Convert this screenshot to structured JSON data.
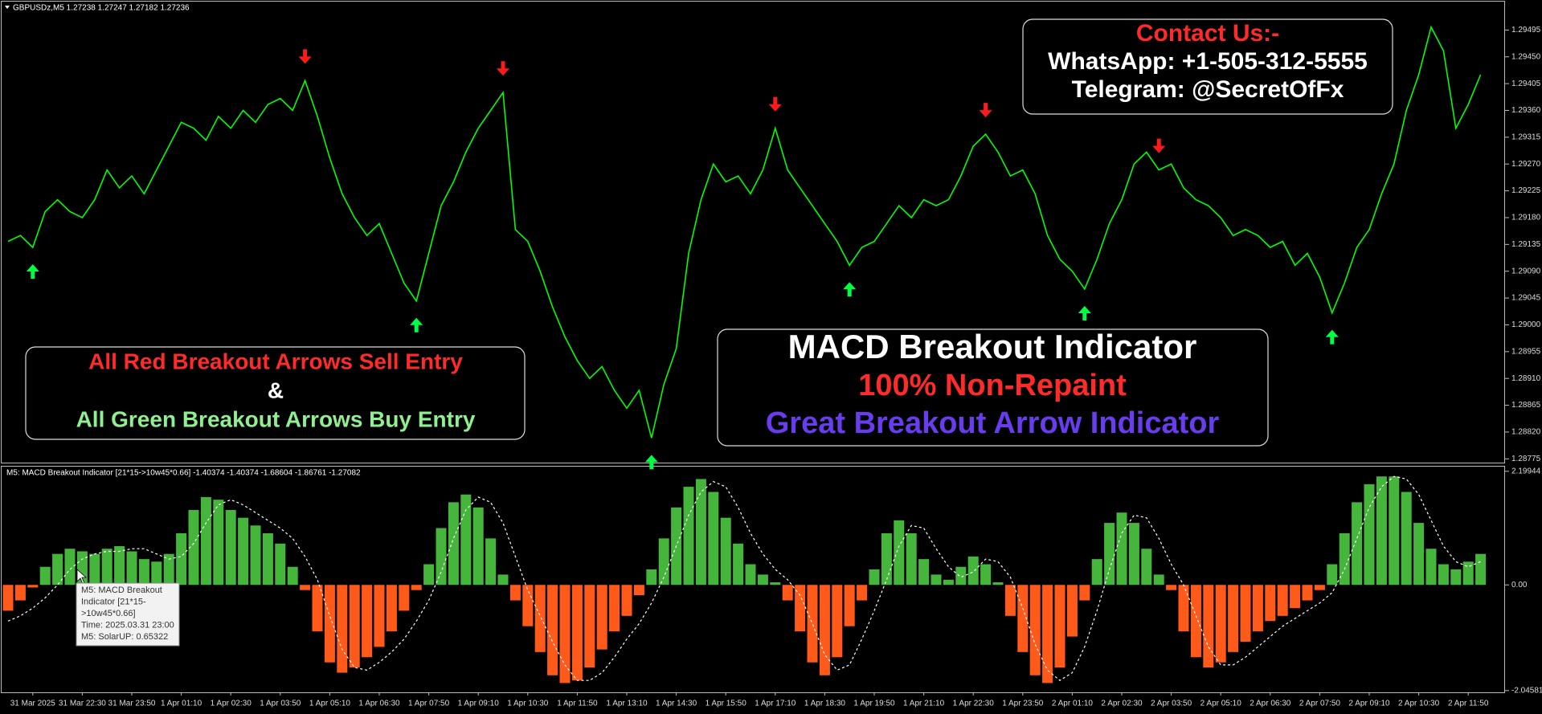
{
  "chart_data": [
    {
      "type": "line",
      "title": "GBPUSDz,M5  1.27238 1.27247 1.27182 1.27236",
      "color": "#00ff00",
      "values": [
        1.2914,
        1.2915,
        1.2913,
        1.2919,
        1.2921,
        1.2919,
        1.2918,
        1.2921,
        1.2926,
        1.2923,
        1.2925,
        1.2922,
        1.2926,
        1.293,
        1.2934,
        1.2933,
        1.2931,
        1.2935,
        1.2933,
        1.2936,
        1.2934,
        1.2937,
        1.2938,
        1.2936,
        1.2941,
        1.2935,
        1.2928,
        1.2922,
        1.2918,
        1.2915,
        1.2917,
        1.2912,
        1.2907,
        1.2904,
        1.2912,
        1.292,
        1.2924,
        1.2929,
        1.2933,
        1.2936,
        1.2939,
        1.2916,
        1.2914,
        1.2909,
        1.2903,
        1.2898,
        1.2894,
        1.2891,
        1.2893,
        1.2889,
        1.2886,
        1.2889,
        1.2881,
        1.289,
        1.2896,
        1.2912,
        1.2921,
        1.2927,
        1.2924,
        1.2925,
        1.2922,
        1.2926,
        1.2933,
        1.2926,
        1.2923,
        1.292,
        1.2917,
        1.2914,
        1.291,
        1.2913,
        1.2914,
        1.2917,
        1.292,
        1.2918,
        1.2921,
        1.292,
        1.2921,
        1.2925,
        1.293,
        1.2932,
        1.2929,
        1.2925,
        1.2926,
        1.2922,
        1.2915,
        1.2911,
        1.2909,
        1.2906,
        1.2911,
        1.2917,
        1.2921,
        1.2927,
        1.2929,
        1.2926,
        1.2927,
        1.2923,
        1.2921,
        1.292,
        1.2918,
        1.2915,
        1.2916,
        1.2915,
        1.2913,
        1.2914,
        1.291,
        1.2912,
        1.2908,
        1.2902,
        1.2907,
        1.2913,
        1.2916,
        1.2922,
        1.2927,
        1.2936,
        1.2942,
        1.295,
        1.2946,
        1.2933,
        1.2937,
        1.2942
      ],
      "sell_signals": [
        24,
        40,
        62,
        79,
        93
      ],
      "buy_signals": [
        2,
        33,
        52,
        68,
        87,
        107
      ],
      "sell_color": "#ff1a1a",
      "buy_color": "#00ff44",
      "ylim": [
        1.2877,
        1.2954
      ],
      "yticks": [
        1.29495,
        {
          "value": 1.2945,
          "label": "1.29450"
        },
        1.29405,
        {
          "value": 1.2936,
          "label": "1.29360"
        },
        1.29315,
        {
          "value": 1.2927,
          "label": "1.29270"
        },
        1.29225,
        {
          "value": 1.2918,
          "label": "1.29180"
        },
        1.29135,
        {
          "value": 1.2909,
          "label": "1.29090"
        },
        1.29045,
        {
          "value": 1.29,
          "label": "1.29000"
        },
        1.28955,
        {
          "value": 1.2891,
          "label": "1.28910"
        },
        1.28865,
        {
          "value": 1.2882,
          "label": "1.28820"
        },
        1.28775
      ],
      "annotations": [
        {
          "lines": [
            {
              "text": "Contact Us:-",
              "color": "#ff2a2a"
            },
            {
              "text": "WhatsApp: +1-505-312-5555",
              "color": "#ffffff"
            },
            {
              "text": "Telegram: @SecretOfFx",
              "color": "#ffffff"
            }
          ]
        },
        {
          "lines": [
            {
              "text": "All Red Breakout Arrows Sell Entry",
              "color": "#ff2a2a"
            },
            {
              "text": "&",
              "color": "#ffffff"
            },
            {
              "text": "All Green Breakout Arrows Buy Entry",
              "color": "#8ef08e"
            }
          ]
        },
        {
          "lines": [
            {
              "text": "MACD Breakout Indicator",
              "color": "#ffffff"
            },
            {
              "text": "100% Non-Repaint",
              "color": "#ff2a2a"
            },
            {
              "text": "Great Breakout Arrow Indicator",
              "color": "#6a3cf0"
            }
          ]
        }
      ]
    },
    {
      "type": "bar",
      "title": "M5: MACD Breakout Indicator [21*15->10w45*0.66] -1.40374 -1.40374 -1.68604 -1.86761 -1.27082",
      "positive_color": "#45b53c",
      "negative_color": "#ff5a1a",
      "signal_color": "#ffffff",
      "categories": [
        null,
        null,
        "31 Mar 2025",
        null,
        null,
        null,
        "31 Mar 22:30",
        null,
        null,
        null,
        "31 Mar 23:50",
        null,
        null,
        null,
        "1 Apr 01:10",
        null,
        null,
        null,
        "1 Apr 02:30",
        null,
        null,
        null,
        "1 Apr 03:50",
        null,
        null,
        null,
        "1 Apr 05:10",
        null,
        null,
        null,
        "1 Apr 06:30",
        null,
        null,
        null,
        "1 Apr 07:50",
        null,
        null,
        null,
        "1 Apr 09:10",
        null,
        null,
        null,
        "1 Apr 10:30",
        null,
        null,
        null,
        "1 Apr 11:50",
        null,
        null,
        null,
        "1 Apr 13:10",
        null,
        null,
        null,
        "1 Apr 14:30",
        null,
        null,
        null,
        "1 Apr 15:50",
        null,
        null,
        null,
        "1 Apr 17:10",
        null,
        null,
        null,
        "1 Apr 18:30",
        null,
        null,
        null,
        "1 Apr 19:50",
        null,
        null,
        null,
        "1 Apr 21:10",
        null,
        null,
        null,
        "1 Apr 22:30",
        null,
        null,
        null,
        "1 Apr 23:50",
        null,
        null,
        null,
        "2 Apr 01:10",
        null,
        null,
        null,
        "2 Apr 02:30",
        null,
        null,
        null,
        "2 Apr 03:50",
        null,
        null,
        null,
        "2 Apr 05:10",
        null,
        null,
        null,
        "2 Apr 06:30",
        null,
        null,
        null,
        "2 Apr 07:50",
        null,
        null,
        null,
        "2 Apr 09:10",
        null,
        null,
        null,
        "2 Apr 10:30",
        null,
        null,
        null,
        "2 Apr 11:50",
        null
      ],
      "values": [
        -0.5,
        -0.3,
        -0.05,
        0.35,
        0.6,
        0.7,
        0.65,
        0.6,
        0.7,
        0.75,
        0.65,
        0.5,
        0.45,
        0.6,
        1.0,
        1.45,
        1.7,
        1.65,
        1.45,
        1.3,
        1.15,
        1.0,
        0.8,
        0.35,
        -0.1,
        -0.9,
        -1.5,
        -1.7,
        -1.6,
        -1.4,
        -1.2,
        -0.9,
        -0.5,
        -0.1,
        0.4,
        1.1,
        1.6,
        1.75,
        1.5,
        0.9,
        0.2,
        -0.3,
        -0.8,
        -1.3,
        -1.75,
        -1.9,
        -1.85,
        -1.6,
        -1.25,
        -0.9,
        -0.6,
        -0.2,
        0.3,
        0.9,
        1.5,
        1.9,
        2.05,
        1.8,
        1.3,
        0.8,
        0.4,
        0.2,
        0.05,
        -0.3,
        -0.9,
        -1.5,
        -1.75,
        -1.4,
        -0.8,
        -0.3,
        0.3,
        1.0,
        1.25,
        1.0,
        0.5,
        0.2,
        0.1,
        0.35,
        0.55,
        0.4,
        0.05,
        -0.6,
        -1.3,
        -1.75,
        -1.9,
        -1.6,
        -1.0,
        -0.3,
        0.5,
        1.2,
        1.4,
        1.2,
        0.7,
        0.2,
        -0.1,
        -0.9,
        -1.4,
        -1.6,
        -1.5,
        -1.3,
        -1.1,
        -0.9,
        -0.7,
        -0.6,
        -0.45,
        -0.3,
        -0.1,
        0.4,
        1.0,
        1.6,
        1.95,
        2.1,
        2.1,
        1.8,
        1.2,
        0.7,
        0.4,
        0.3,
        0.45,
        0.6
      ],
      "signal_values": [
        -0.7,
        -0.6,
        -0.45,
        -0.25,
        0.0,
        0.3,
        0.5,
        0.6,
        0.65,
        0.65,
        0.7,
        0.7,
        0.6,
        0.5,
        0.55,
        0.8,
        1.2,
        1.55,
        1.65,
        1.55,
        1.4,
        1.25,
        1.1,
        0.9,
        0.55,
        0.1,
        -0.6,
        -1.25,
        -1.6,
        -1.65,
        -1.5,
        -1.3,
        -1.05,
        -0.7,
        -0.3,
        0.25,
        0.9,
        1.45,
        1.7,
        1.6,
        1.2,
        0.55,
        -0.1,
        -0.6,
        -1.1,
        -1.55,
        -1.85,
        -1.85,
        -1.7,
        -1.4,
        -1.05,
        -0.75,
        -0.35,
        0.15,
        0.75,
        1.35,
        1.8,
        2.0,
        1.9,
        1.5,
        1.0,
        0.6,
        0.3,
        0.1,
        -0.2,
        -0.75,
        -1.35,
        -1.65,
        -1.55,
        -1.05,
        -0.5,
        0.1,
        0.75,
        1.15,
        1.1,
        0.7,
        0.35,
        0.15,
        0.25,
        0.5,
        0.45,
        0.15,
        -0.45,
        -1.15,
        -1.65,
        -1.85,
        -1.7,
        -1.2,
        -0.5,
        0.3,
        1.0,
        1.35,
        1.3,
        0.9,
        0.4,
        0.0,
        -0.6,
        -1.2,
        -1.55,
        -1.55,
        -1.4,
        -1.2,
        -1.0,
        -0.8,
        -0.65,
        -0.5,
        -0.35,
        -0.15,
        0.3,
        0.9,
        1.5,
        1.9,
        2.1,
        2.05,
        1.75,
        1.25,
        0.75,
        0.45,
        0.35,
        0.45
      ],
      "ylim": [
        -2.08,
        2.29
      ],
      "yticks": [
        2.19944,
        {
          "value": 0,
          "label": "0.00"
        },
        -2.04581
      ],
      "tooltip": {
        "lines": [
          "M5: MACD Breakout",
          "Indicator [21*15-",
          ">10w45*0.66]",
          "Time: 2025.03.31 23:00",
          "M5: SolarUP: 0.65322"
        ]
      }
    }
  ]
}
